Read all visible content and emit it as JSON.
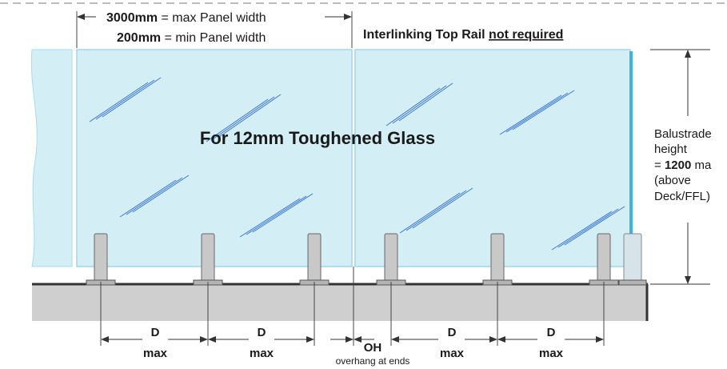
{
  "top_dims": {
    "max_value": "3000mm",
    "max_label": " = max Panel width",
    "min_value": "200mm",
    "min_label": " = min Panel width"
  },
  "rail_note": {
    "prefix": "Interlinking Top Rail ",
    "emphasis": "not required"
  },
  "glass_label": "For 12mm Toughened Glass",
  "height_note": {
    "line1": "Balustrade",
    "line2": "height",
    "line3_prefix": "= ",
    "line3_value": "1200",
    "line3_suffix": " ma",
    "line4": "(above",
    "line5": "Deck/FFL)"
  },
  "spacing": {
    "d_label": "D",
    "max_label": "max",
    "oh_label": "OH",
    "oh_caption": "overhang at ends"
  },
  "colors": {
    "glass_fill": "#d4eef6",
    "glass_edge": "#9fd6ea",
    "reflection": "#3a78d4",
    "spigot": "#c8c8c8",
    "deck": "#cfcfcf",
    "line": "#333333"
  }
}
